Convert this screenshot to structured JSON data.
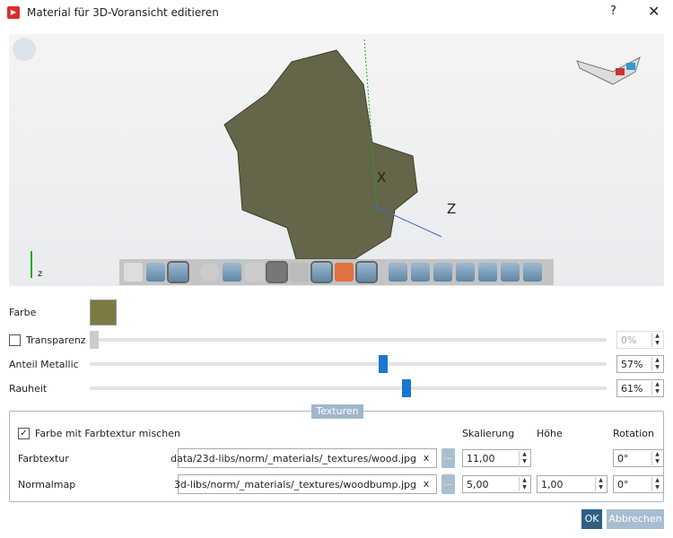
{
  "window": {
    "title": "Material für 3D-Voransicht editieren",
    "help": "?",
    "close": "✕"
  },
  "viewport": {
    "axis_x": "X",
    "axis_z": "Z",
    "mini_axis": "z",
    "model_color": "#65654a",
    "toolbar_icons": [
      "wireframe-cylinder-icon",
      "shaded-cylinder-icon",
      "shaded-edges-cylinder-icon",
      "zoom-icon",
      "zoom-fit-icon",
      "rotate-icon",
      "dimension-toolbar-icon",
      "mesh-icon",
      "section-icon",
      "texture-cylinder-icon",
      "solid-box-icon",
      "view-front-icon",
      "view-back-icon",
      "view-left-icon",
      "view-right-icon",
      "view-top-icon",
      "view-bottom-icon",
      "view-iso-icon"
    ]
  },
  "material": {
    "color_label": "Farbe",
    "color": "#7b7a43",
    "transparency": {
      "label": "Transparenz",
      "checked": false,
      "value": "0%",
      "percent": 0
    },
    "metallic": {
      "label": "Anteil Metallic",
      "value": "57%",
      "percent": 57
    },
    "roughness": {
      "label": "Rauheit",
      "value": "61%",
      "percent": 61
    }
  },
  "textures": {
    "legend": "Texturen",
    "mix_label": "Farbe mit Farbtextur mischen",
    "mix_checked": true,
    "col_scale": "Skalierung",
    "col_height": "Höhe",
    "col_rotation": "Rotation",
    "color_texture": {
      "label": "Farbtextur",
      "path": "data/23d-libs/norm/_materials/_textures/wood.jpg",
      "scale": "11,00",
      "rotation": "0°"
    },
    "normal_map": {
      "label": "Normalmap",
      "path": "3d-libs/norm/_materials/_textures/woodbump.jpg",
      "scale": "5,00",
      "height": "1,00",
      "rotation": "0°"
    },
    "clear": "x",
    "browse": "..."
  },
  "buttons": {
    "ok": "OK",
    "cancel": "Abbrechen"
  }
}
